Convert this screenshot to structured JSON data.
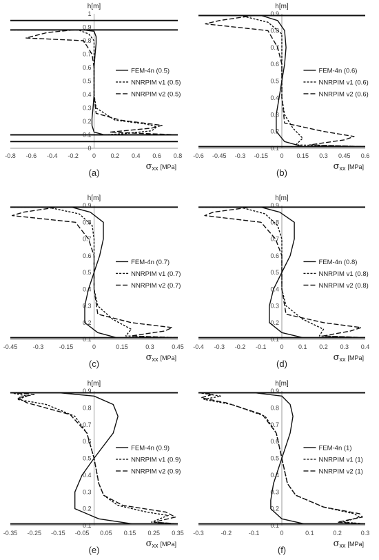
{
  "chart_data": [
    {
      "type": "line",
      "panel_label": "(a)",
      "ylabel": "h[m]",
      "xlabel_symbol": "σ",
      "xlabel_sub": "xx",
      "xlabel_unit": "[MPa]",
      "xlim": [
        -0.8,
        0.8
      ],
      "ylim": [
        0,
        1
      ],
      "xticks": [
        "-0.8",
        "-0.6",
        "-0.4",
        "-0.2",
        "0",
        "0.2",
        "0.4",
        "0.6",
        "0.8"
      ],
      "yticks": [
        "0",
        "0.1",
        "0.2",
        "0.3",
        "0.4",
        "0.5",
        "0.6",
        "0.7",
        "0.8",
        "0.9",
        "1"
      ],
      "legend_position": "right",
      "hlines": [
        0.05,
        0.1,
        0.88,
        0.95
      ],
      "series": [
        {
          "name": "FEM-4n (0.5)",
          "style": "solid",
          "x": [
            -0.8,
            -0.1,
            0.0,
            0.02,
            0.02,
            0.01,
            0.0,
            0.0,
            0.0,
            -0.01,
            -0.02,
            -0.02,
            0.0,
            0.1,
            0.8
          ],
          "y": [
            0.88,
            0.88,
            0.87,
            0.83,
            0.78,
            0.7,
            0.6,
            0.5,
            0.4,
            0.3,
            0.22,
            0.17,
            0.12,
            0.1,
            0.1
          ]
        },
        {
          "name": "NNRPIM v1 (0.5)",
          "style": "dashed",
          "x": [
            -0.8,
            -0.15,
            -0.05,
            0.0,
            0.0,
            0.0,
            0.0,
            0.0,
            0.02,
            0.2,
            0.5,
            0.6,
            0.55,
            0.3,
            0.1,
            0.8
          ],
          "y": [
            0.88,
            0.88,
            0.85,
            0.8,
            0.7,
            0.6,
            0.5,
            0.4,
            0.3,
            0.21,
            0.18,
            0.16,
            0.13,
            0.11,
            0.1,
            0.1
          ]
        },
        {
          "name": "NNRPIM v2 (0.5)",
          "style": "longdash",
          "x": [
            -0.8,
            -0.2,
            -0.45,
            -0.65,
            -0.1,
            -0.02,
            0.0,
            0.0,
            0.0,
            0.02,
            0.25,
            0.65,
            0.55,
            0.15,
            0.8
          ],
          "y": [
            0.88,
            0.88,
            0.86,
            0.82,
            0.8,
            0.7,
            0.6,
            0.5,
            0.4,
            0.26,
            0.21,
            0.17,
            0.15,
            0.12,
            0.1
          ]
        }
      ]
    },
    {
      "type": "line",
      "panel_label": "(b)",
      "ylabel": "h[m]",
      "xlabel_symbol": "σ",
      "xlabel_sub": "xx",
      "xlabel_unit": "[MPa]",
      "xlim": [
        -0.6,
        0.6
      ],
      "ylim": [
        0.1,
        0.9
      ],
      "xticks": [
        "-0.6",
        "-0.45",
        "-0.3",
        "-0.15",
        "0",
        "0.15",
        "0.3",
        "0.45",
        "0.6"
      ],
      "yticks": [
        "0.1",
        "0.2",
        "0.3",
        "0.4",
        "0.5",
        "0.6",
        "0.7",
        "0.8",
        "0.9"
      ],
      "legend_position": "right",
      "hlines": [
        0.11,
        0.89
      ],
      "series": [
        {
          "name": "FEM-4n (0.6)",
          "style": "solid",
          "x": [
            -0.6,
            -0.15,
            -0.03,
            0.02,
            0.03,
            0.02,
            0.0,
            -0.02,
            -0.04,
            -0.04,
            0.02,
            0.15,
            0.6
          ],
          "y": [
            0.89,
            0.89,
            0.86,
            0.8,
            0.7,
            0.6,
            0.5,
            0.4,
            0.3,
            0.2,
            0.14,
            0.11,
            0.11
          ]
        },
        {
          "name": "NNRPIM v1 (0.6)",
          "style": "dashed",
          "x": [
            -0.6,
            -0.3,
            -0.1,
            0.0,
            0.0,
            0.0,
            0.0,
            0.0,
            0.02,
            0.08,
            0.15,
            0.1,
            0.6
          ],
          "y": [
            0.89,
            0.89,
            0.85,
            0.78,
            0.7,
            0.6,
            0.5,
            0.4,
            0.3,
            0.22,
            0.16,
            0.12,
            0.11
          ]
        },
        {
          "name": "NNRPIM v2 (0.6)",
          "style": "longdash",
          "x": [
            -0.6,
            -0.2,
            -0.45,
            -0.55,
            -0.1,
            -0.03,
            0.0,
            0.0,
            0.0,
            0.02,
            0.3,
            0.52,
            0.45,
            0.2,
            0.6
          ],
          "y": [
            0.89,
            0.89,
            0.86,
            0.84,
            0.8,
            0.7,
            0.6,
            0.5,
            0.4,
            0.25,
            0.2,
            0.17,
            0.15,
            0.12,
            0.11
          ]
        }
      ]
    },
    {
      "type": "line",
      "panel_label": "(c)",
      "ylabel": "h[m]",
      "xlabel_symbol": "σ",
      "xlabel_sub": "xx",
      "xlabel_unit": "[MPa]",
      "xlim": [
        -0.45,
        0.45
      ],
      "ylim": [
        0.1,
        0.9
      ],
      "xticks": [
        "-0.45",
        "-0.3",
        "-0.15",
        "0",
        "0.15",
        "0.3",
        "0.45"
      ],
      "yticks": [
        "0.1",
        "0.2",
        "0.3",
        "0.4",
        "0.5",
        "0.6",
        "0.7",
        "0.8",
        "0.9"
      ],
      "legend_position": "right",
      "hlines": [
        0.11,
        0.89
      ],
      "series": [
        {
          "name": "FEM-4n (0.7)",
          "style": "solid",
          "x": [
            -0.45,
            -0.12,
            -0.02,
            0.05,
            0.05,
            0.03,
            0.0,
            -0.03,
            -0.05,
            -0.05,
            0.02,
            0.12,
            0.45
          ],
          "y": [
            0.89,
            0.89,
            0.86,
            0.8,
            0.7,
            0.6,
            0.5,
            0.4,
            0.3,
            0.2,
            0.14,
            0.11,
            0.11
          ]
        },
        {
          "name": "NNRPIM v1 (0.7)",
          "style": "dashed",
          "x": [
            -0.45,
            -0.25,
            -0.08,
            -0.01,
            0.0,
            0.0,
            0.0,
            0.0,
            0.02,
            0.1,
            0.2,
            0.17,
            0.45
          ],
          "y": [
            0.89,
            0.89,
            0.85,
            0.78,
            0.7,
            0.6,
            0.5,
            0.4,
            0.3,
            0.22,
            0.16,
            0.12,
            0.11
          ]
        },
        {
          "name": "NNRPIM v2 (0.7)",
          "style": "longdash",
          "x": [
            -0.45,
            -0.2,
            -0.38,
            -0.44,
            -0.1,
            -0.03,
            0.0,
            0.0,
            0.0,
            0.02,
            0.2,
            0.42,
            0.38,
            0.2,
            0.45
          ],
          "y": [
            0.89,
            0.89,
            0.86,
            0.84,
            0.8,
            0.7,
            0.6,
            0.5,
            0.4,
            0.25,
            0.2,
            0.17,
            0.15,
            0.12,
            0.11
          ]
        }
      ]
    },
    {
      "type": "line",
      "panel_label": "(d)",
      "ylabel": "h[m]",
      "xlabel_symbol": "σ",
      "xlabel_sub": "xx",
      "xlabel_unit": "[MPa]",
      "xlim": [
        -0.4,
        0.4
      ],
      "ylim": [
        0.1,
        0.9
      ],
      "xticks": [
        "-0.4",
        "-0.3",
        "-0.2",
        "-0.1",
        "0",
        "0.1",
        "0.2",
        "0.3",
        "0.4"
      ],
      "yticks": [
        "0.1",
        "0.2",
        "0.3",
        "0.4",
        "0.5",
        "0.6",
        "0.7",
        "0.8",
        "0.9"
      ],
      "legend_position": "right",
      "hlines": [
        0.11,
        0.89
      ],
      "series": [
        {
          "name": "FEM-4n (0.8)",
          "style": "solid",
          "x": [
            -0.4,
            -0.1,
            -0.01,
            0.06,
            0.06,
            0.04,
            0.0,
            -0.04,
            -0.06,
            -0.06,
            0.0,
            0.1,
            0.4
          ],
          "y": [
            0.89,
            0.89,
            0.86,
            0.8,
            0.7,
            0.6,
            0.5,
            0.4,
            0.3,
            0.2,
            0.14,
            0.11,
            0.11
          ]
        },
        {
          "name": "NNRPIM v1 (0.8)",
          "style": "dashed",
          "x": [
            -0.4,
            -0.2,
            -0.08,
            -0.02,
            0.0,
            0.0,
            0.0,
            0.0,
            0.02,
            0.1,
            0.2,
            0.18,
            0.4
          ],
          "y": [
            0.89,
            0.89,
            0.85,
            0.78,
            0.7,
            0.6,
            0.5,
            0.4,
            0.3,
            0.22,
            0.16,
            0.12,
            0.11
          ]
        },
        {
          "name": "NNRPIM v2 (0.8)",
          "style": "longdash",
          "x": [
            -0.4,
            -0.15,
            -0.33,
            -0.37,
            -0.1,
            -0.03,
            0.0,
            0.0,
            0.0,
            0.02,
            0.2,
            0.38,
            0.33,
            0.2,
            0.4
          ],
          "y": [
            0.89,
            0.89,
            0.86,
            0.84,
            0.8,
            0.7,
            0.6,
            0.5,
            0.4,
            0.25,
            0.2,
            0.17,
            0.15,
            0.12,
            0.11
          ]
        }
      ]
    },
    {
      "type": "line",
      "panel_label": "(e)",
      "ylabel": "h[m]",
      "xlabel_symbol": "σ",
      "xlabel_sub": "xx",
      "xlabel_unit": "[MPa]",
      "xlim": [
        -0.35,
        0.35
      ],
      "ylim": [
        0.1,
        0.9
      ],
      "xticks": [
        "-0.35",
        "-0.25",
        "-0.15",
        "-0.05",
        "0.05",
        "0.15",
        "0.25",
        "0.35"
      ],
      "yticks": [
        "0.1",
        "0.2",
        "0.3",
        "0.4",
        "0.5",
        "0.6",
        "0.7",
        "0.8",
        "0.9"
      ],
      "legend_position": "right",
      "hlines": [
        0.11,
        0.89
      ],
      "series": [
        {
          "name": "FEM-4n (0.9)",
          "style": "solid",
          "x": [
            -0.35,
            -0.15,
            0.0,
            0.08,
            0.1,
            0.08,
            0.0,
            -0.05,
            -0.08,
            -0.08,
            0.02,
            0.16,
            0.35
          ],
          "y": [
            0.89,
            0.89,
            0.87,
            0.82,
            0.75,
            0.65,
            0.5,
            0.4,
            0.3,
            0.2,
            0.14,
            0.11,
            0.11
          ]
        },
        {
          "name": "NNRPIM v1 (0.9)",
          "style": "dashed",
          "x": [
            -0.35,
            -0.28,
            -0.32,
            -0.2,
            -0.08,
            -0.03,
            0.0,
            0.02,
            0.04,
            0.1,
            0.22,
            0.31,
            0.24,
            0.35
          ],
          "y": [
            0.89,
            0.87,
            0.85,
            0.82,
            0.75,
            0.65,
            0.5,
            0.35,
            0.28,
            0.22,
            0.18,
            0.16,
            0.12,
            0.11
          ]
        },
        {
          "name": "NNRPIM v2 (0.9)",
          "style": "longdash",
          "x": [
            -0.35,
            -0.25,
            -0.32,
            -0.28,
            -0.1,
            -0.03,
            0.0,
            0.02,
            0.04,
            0.12,
            0.3,
            0.34,
            0.25,
            0.35
          ],
          "y": [
            0.89,
            0.88,
            0.86,
            0.83,
            0.76,
            0.65,
            0.5,
            0.35,
            0.28,
            0.22,
            0.18,
            0.15,
            0.12,
            0.11
          ]
        }
      ]
    },
    {
      "type": "line",
      "panel_label": "(f)",
      "ylabel": "h[m]",
      "xlabel_symbol": "σ",
      "xlabel_sub": "xx",
      "xlabel_unit": "[MPa]",
      "xlim": [
        -0.3,
        0.3
      ],
      "ylim": [
        0.1,
        0.9
      ],
      "xticks": [
        "-0.3",
        "-0.2",
        "-0.1",
        "0",
        "0.1",
        "0.2",
        "0.3"
      ],
      "yticks": [
        "0.1",
        "0.2",
        "0.3",
        "0.4",
        "0.5",
        "0.6",
        "0.7",
        "0.8",
        "0.9"
      ],
      "legend_position": "right",
      "hlines": [
        0.11,
        0.89
      ],
      "series": [
        {
          "name": "FEM-4n (1)",
          "style": "solid",
          "x": [
            -0.3,
            -0.1,
            0.0,
            0.03,
            0.04,
            0.03,
            0.0,
            -0.03,
            -0.04,
            -0.04,
            0.0,
            0.08,
            0.3
          ],
          "y": [
            0.89,
            0.89,
            0.87,
            0.82,
            0.75,
            0.65,
            0.5,
            0.35,
            0.25,
            0.2,
            0.14,
            0.11,
            0.11
          ]
        },
        {
          "name": "NNRPIM v1 (1)",
          "style": "dashed",
          "x": [
            -0.3,
            -0.22,
            -0.28,
            -0.18,
            -0.06,
            -0.02,
            0.0,
            0.02,
            0.05,
            0.15,
            0.26,
            0.28,
            0.22,
            0.3
          ],
          "y": [
            0.89,
            0.87,
            0.85,
            0.82,
            0.75,
            0.65,
            0.5,
            0.35,
            0.28,
            0.21,
            0.17,
            0.15,
            0.12,
            0.11
          ]
        },
        {
          "name": "NNRPIM v2 (1)",
          "style": "longdash",
          "x": [
            -0.3,
            -0.25,
            -0.29,
            -0.2,
            -0.07,
            -0.02,
            0.0,
            0.02,
            0.05,
            0.15,
            0.28,
            0.29,
            0.2,
            0.3
          ],
          "y": [
            0.89,
            0.88,
            0.86,
            0.83,
            0.76,
            0.65,
            0.5,
            0.35,
            0.28,
            0.21,
            0.17,
            0.15,
            0.12,
            0.11
          ]
        }
      ]
    }
  ]
}
